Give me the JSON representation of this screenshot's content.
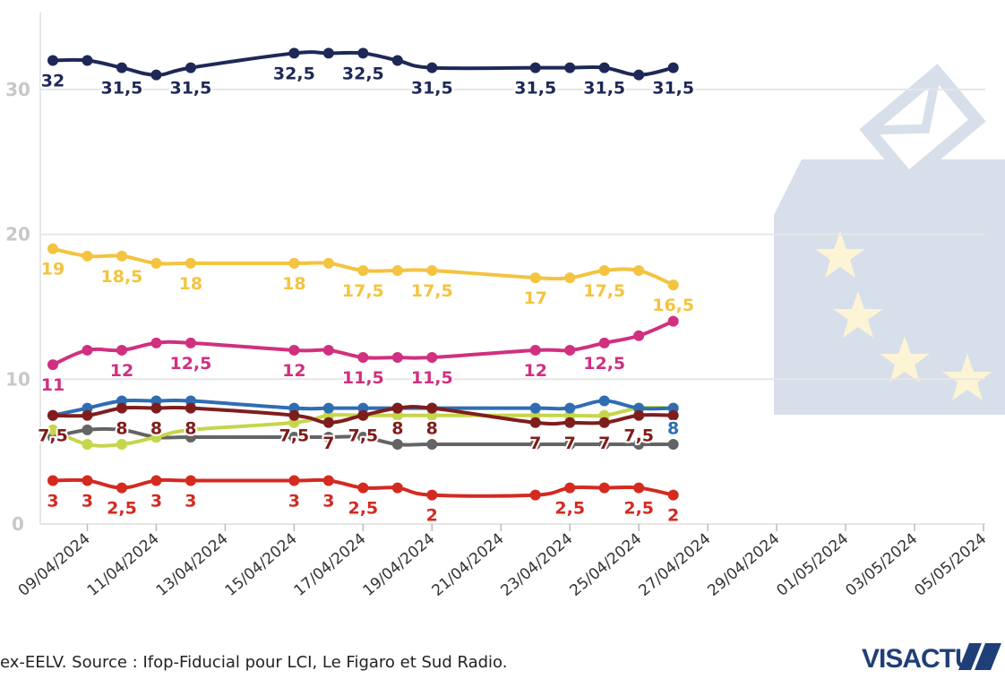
{
  "chart_data": {
    "type": "line",
    "x": [
      "08/04/2024",
      "09/04/2024",
      "10/04/2024",
      "11/04/2024",
      "12/04/2024",
      "15/04/2024",
      "16/04/2024",
      "17/04/2024",
      "18/04/2024",
      "19/04/2024",
      "22/04/2024",
      "23/04/2024",
      "24/04/2024",
      "25/04/2024",
      "26/04/2024"
    ],
    "xlim": [
      "08/04/2024",
      "05/05/2024"
    ],
    "xticks": [
      "09/04/2024",
      "11/04/2024",
      "13/04/2024",
      "15/04/2024",
      "17/04/2024",
      "19/04/2024",
      "21/04/2024",
      "23/04/2024",
      "25/04/2024",
      "27/04/2024",
      "29/04/2024",
      "01/05/2024",
      "03/05/2024",
      "05/05/2024"
    ],
    "ylim": [
      0,
      35
    ],
    "yticks": [
      0,
      10,
      20,
      30
    ],
    "grid": true,
    "series": [
      {
        "color": "#646464",
        "values": [
          6,
          6.5,
          6.5,
          6,
          6,
          6,
          6,
          6,
          5.5,
          5.5,
          5.5,
          5.5,
          5.5,
          5.5,
          5.5
        ],
        "value_labels": [
          null,
          null,
          null,
          null,
          null,
          null,
          null,
          null,
          null,
          null,
          null,
          null,
          null,
          null,
          null
        ]
      },
      {
        "color": "#c5d64a",
        "values": [
          6.5,
          5.5,
          5.5,
          6,
          6.5,
          7,
          7.5,
          7.5,
          7.5,
          7.5,
          7.5,
          7.5,
          7.5,
          8,
          8
        ],
        "value_labels": [
          null,
          null,
          null,
          null,
          null,
          null,
          null,
          null,
          null,
          null,
          null,
          null,
          null,
          null,
          null
        ]
      },
      {
        "color": "#2f6db3",
        "values": [
          7.5,
          8,
          8.5,
          8.5,
          8.5,
          8,
          8,
          8,
          8,
          8,
          8,
          8,
          8.5,
          8,
          8
        ],
        "value_labels": [
          null,
          null,
          null,
          null,
          null,
          null,
          null,
          null,
          null,
          null,
          null,
          null,
          null,
          null,
          "8"
        ]
      },
      {
        "color": "#7f1d1d",
        "values": [
          7.5,
          7.5,
          8,
          8,
          8,
          7.5,
          7,
          7.5,
          8,
          8,
          7,
          7,
          7,
          7.5,
          7.5
        ],
        "value_labels": [
          "7,5",
          null,
          "8",
          "8",
          "8",
          "7,5",
          "7",
          "7,5",
          "8",
          "8",
          "7",
          "7",
          "7",
          "7,5",
          null
        ]
      },
      {
        "color": "#d42a20",
        "values": [
          3,
          3,
          2.5,
          3,
          3,
          3,
          3,
          2.5,
          2.5,
          2,
          2,
          2.5,
          2.5,
          2.5,
          2
        ],
        "value_labels": [
          "3",
          "3",
          "2,5",
          "3",
          "3",
          "3",
          "3",
          "2,5",
          null,
          "2",
          null,
          "2,5",
          null,
          "2,5",
          "2"
        ]
      },
      {
        "color": "#d0307f",
        "values": [
          11,
          12,
          12,
          12.5,
          12.5,
          12,
          12,
          11.5,
          11.5,
          11.5,
          12,
          12,
          12.5,
          13,
          14
        ],
        "value_labels": [
          "11",
          null,
          "12",
          null,
          "12,5",
          "12",
          null,
          "11,5",
          null,
          "11,5",
          "12",
          null,
          "12,5",
          null,
          null
        ]
      },
      {
        "color": "#f4c33f",
        "values": [
          19,
          18.5,
          18.5,
          18,
          18,
          18,
          18,
          17.5,
          17.5,
          17.5,
          17,
          17,
          17.5,
          17.5,
          16.5
        ],
        "value_labels": [
          "19",
          null,
          "18,5",
          null,
          "18",
          "18",
          null,
          "17,5",
          null,
          "17,5",
          "17",
          null,
          "17,5",
          null,
          "16,5"
        ]
      },
      {
        "color": "#1e2858",
        "values": [
          32,
          32,
          31.5,
          31,
          31.5,
          32.5,
          32.5,
          32.5,
          32,
          31.5,
          31.5,
          31.5,
          31.5,
          31,
          31.5
        ],
        "value_labels": [
          "32",
          null,
          "31,5",
          null,
          "31,5",
          "32,5",
          null,
          "32,5",
          null,
          "31,5",
          "31,5",
          null,
          "31,5",
          null,
          "31,5"
        ]
      }
    ],
    "source": "ex-EELV. Source : Ifop-Fiducial pour LCI, Le Figaro et Sud Radio.",
    "logo": "VISACTU"
  }
}
